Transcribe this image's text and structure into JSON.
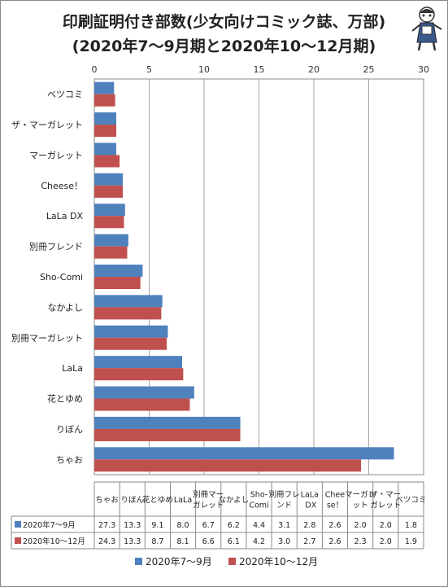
{
  "title_line1": "印刷証明付き部数(少女向けコミック誌、万部)",
  "title_line2": "(2020年7〜9月期と2020年10〜12月期)",
  "chart_data": {
    "type": "bar",
    "orientation": "horizontal",
    "categories": [
      "ちゃお",
      "りぼん",
      "花とゆめ",
      "LaLa",
      "別冊マーガレット",
      "なかよし",
      "Sho-Comi",
      "別冊フレンド",
      "LaLa DX",
      "Cheese！",
      "マーガレット",
      "ザ・マーガレット",
      "ベツコミ"
    ],
    "table_headers": [
      "ちゃお",
      "りぼん",
      "花とゆめ",
      "LaLa",
      "別冊マーガレット",
      "なかよし",
      "Sho-Comi",
      "別冊フレンド",
      "LaLa DX",
      "Cheese！",
      "マーガレット",
      "ザ・マーガレット",
      "ベツコミ"
    ],
    "series": [
      {
        "name": "2020年7〜9月",
        "color": "#4f81bd",
        "values": [
          27.3,
          13.3,
          9.1,
          8.0,
          6.7,
          6.2,
          4.4,
          3.1,
          2.8,
          2.6,
          2.0,
          2.0,
          1.8
        ]
      },
      {
        "name": "2020年10〜12月",
        "color": "#c0504d",
        "values": [
          24.3,
          13.3,
          8.7,
          8.1,
          6.6,
          6.1,
          4.2,
          3.0,
          2.7,
          2.6,
          2.3,
          2.0,
          1.9
        ]
      }
    ],
    "table_values": [
      [
        "27.3",
        "13.3",
        "9.1",
        "8.0",
        "6.7",
        "6.2",
        "4.4",
        "3.1",
        "2.8",
        "2.6",
        "2.0",
        "2.0",
        "1.8"
      ],
      [
        "24.3",
        "13.3",
        "8.7",
        "8.1",
        "6.6",
        "6.1",
        "4.2",
        "3.0",
        "2.7",
        "2.6",
        "2.3",
        "2.0",
        "1.9"
      ]
    ],
    "xlim": [
      0,
      30
    ],
    "xticks": [
      "0",
      "5",
      "10",
      "15",
      "20",
      "25",
      "30"
    ],
    "grid": true,
    "legend_position": "bottom",
    "data_table": true
  }
}
